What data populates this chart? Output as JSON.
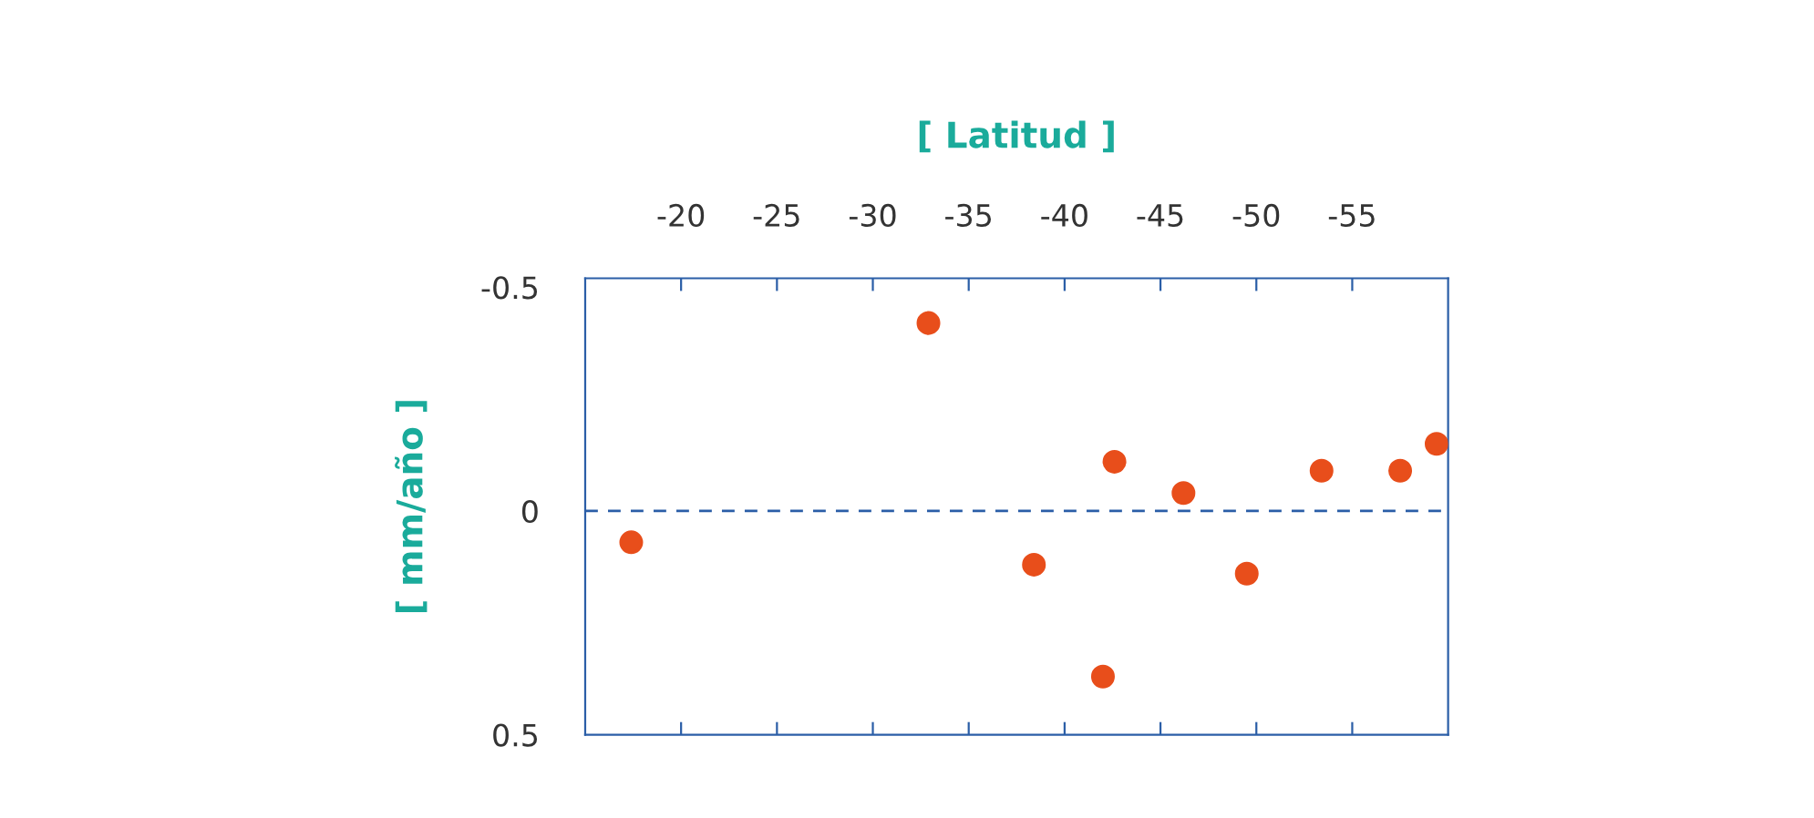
{
  "chart_data": {
    "type": "scatter",
    "xlabel": "[ Latitud ]",
    "ylabel": "[ mm/año ]",
    "x": [
      -17.4,
      -32.9,
      -38.4,
      -42.0,
      -42.6,
      -46.2,
      -49.5,
      -53.4,
      -57.5,
      -59.4
    ],
    "series": [
      {
        "color": "#e84e1b",
        "values": [
          0.07,
          -0.42,
          0.12,
          0.37,
          -0.11,
          -0.04,
          0.14,
          -0.09,
          -0.09,
          -0.15
        ]
      }
    ],
    "xlim": [
      -15,
      -60
    ],
    "xticks": [
      -20,
      -25,
      -30,
      -35,
      -40,
      -45,
      -50,
      -55
    ],
    "ylim": [
      0.5,
      -0.52
    ],
    "yticks": [
      -0.5,
      0,
      0.5
    ],
    "ref_lines": [
      {
        "axis": "y",
        "value": 0,
        "color": "#2b5ea7",
        "line_style": "dashed"
      }
    ],
    "marker": "circle",
    "grid": false,
    "legend": false
  }
}
